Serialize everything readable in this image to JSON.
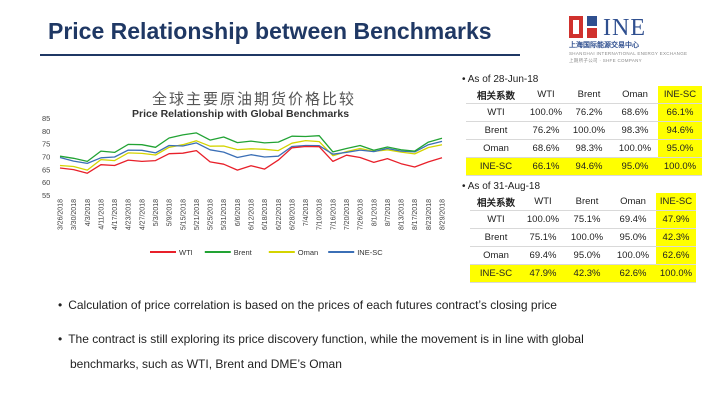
{
  "slide": {
    "title": "Price Relationship between Benchmarks"
  },
  "logo": {
    "word": "INE",
    "cn": "上海国际能源交易中心",
    "en_line1": "SHANGHAI INTERNATIONAL ENERGY EXCHANGE",
    "en_line2": "上期所子公司 · SHFE COMPANY"
  },
  "colors": {
    "wti": "#e8202a",
    "brent": "#22a334",
    "oman": "#d4d400",
    "ine": "#3b6fb6",
    "highlight": "#ffff00"
  },
  "chart_data": {
    "type": "line",
    "title_cn": "全球主要原油期货价格比较",
    "title": "Price Relationship with Global Benchmarks",
    "xlabel": "",
    "ylabel": "",
    "ylim": [
      55,
      85
    ],
    "yticks": [
      55,
      60,
      65,
      70,
      75,
      80,
      85
    ],
    "x": [
      "3/26/2018",
      "3/30/2018",
      "4/3/2018",
      "4/11/2018",
      "4/17/2018",
      "4/23/2018",
      "4/27/2018",
      "5/3/2018",
      "5/9/2018",
      "5/15/2018",
      "5/21/2018",
      "5/25/2018",
      "5/31/2018",
      "6/6/2018",
      "6/12/2018",
      "6/18/2018",
      "6/22/2018",
      "6/28/2018",
      "7/4/2018",
      "7/10/2018",
      "7/16/2018",
      "7/20/2018",
      "7/26/2018",
      "8/1/2018",
      "8/7/2018",
      "8/13/2018",
      "8/17/2018",
      "8/23/2018",
      "8/29/2018"
    ],
    "series": [
      {
        "name": "WTI",
        "values": [
          65.5,
          64.9,
          63.5,
          66.8,
          66.5,
          68.6,
          68.1,
          68.4,
          71.1,
          71.3,
          72.3,
          67.9,
          67.0,
          64.7,
          66.4,
          65.1,
          68.6,
          73.4,
          73.9,
          73.8,
          68.1,
          70.5,
          69.6,
          67.7,
          69.2,
          67.2,
          65.9,
          67.9,
          69.5
        ]
      },
      {
        "name": "Brent",
        "values": [
          70.1,
          69.3,
          68.1,
          72.1,
          71.6,
          74.7,
          74.6,
          73.6,
          77.2,
          78.4,
          79.2,
          76.4,
          77.6,
          75.4,
          76.0,
          75.3,
          75.6,
          77.9,
          77.8,
          78.1,
          71.8,
          73.1,
          74.3,
          72.4,
          73.7,
          72.6,
          72.1,
          75.6,
          77.1
        ]
      },
      {
        "name": "Oman",
        "values": [
          66.5,
          66.1,
          64.7,
          68.8,
          68.4,
          71.4,
          71.2,
          70.6,
          73.6,
          74.6,
          76.1,
          74.0,
          74.1,
          72.7,
          73.0,
          72.8,
          72.3,
          75.2,
          76.2,
          75.8,
          70.3,
          71.9,
          73.1,
          72.0,
          72.6,
          71.7,
          71.0,
          73.5,
          74.6
        ]
      },
      {
        "name": "INE-SC",
        "values": [
          69.6,
          68.2,
          67.3,
          69.5,
          69.8,
          72.5,
          72.4,
          71.4,
          74.3,
          74.1,
          75.3,
          72.6,
          71.7,
          69.6,
          70.7,
          69.8,
          70.1,
          73.9,
          74.3,
          74.2,
          70.9,
          71.6,
          72.5,
          71.9,
          73.1,
          72.1,
          71.8,
          74.6,
          75.9
        ]
      }
    ]
  },
  "table1": {
    "bullet": "As of 28-Jun-18",
    "corner": "相关系数",
    "headers": [
      "WTI",
      "Brent",
      "Oman",
      "INE-SC"
    ],
    "rows": [
      {
        "label": "WTI",
        "cells": [
          "100.0%",
          "76.2%",
          "68.6%",
          "66.1%"
        ]
      },
      {
        "label": "Brent",
        "cells": [
          "76.2%",
          "100.0%",
          "98.3%",
          "94.6%"
        ]
      },
      {
        "label": "Oman",
        "cells": [
          "68.6%",
          "98.3%",
          "100.0%",
          "95.0%"
        ]
      },
      {
        "label": "INE-SC",
        "cells": [
          "66.1%",
          "94.6%",
          "95.0%",
          "100.0%"
        ]
      }
    ]
  },
  "table2": {
    "bullet": "As of 31-Aug-18",
    "corner": "相关系数",
    "headers": [
      "WTI",
      "Brent",
      "Oman",
      "INE-SC"
    ],
    "rows": [
      {
        "label": "WTI",
        "cells": [
          "100.0%",
          "75.1%",
          "69.4%",
          "47.9%"
        ]
      },
      {
        "label": "Brent",
        "cells": [
          "75.1%",
          "100.0%",
          "95.0%",
          "42.3%"
        ]
      },
      {
        "label": "Oman",
        "cells": [
          "69.4%",
          "95.0%",
          "100.0%",
          "62.6%"
        ]
      },
      {
        "label": "INE-SC",
        "cells": [
          "47.9%",
          "42.3%",
          "62.6%",
          "100.0%"
        ]
      }
    ]
  },
  "notes": {
    "note1": "Calculation of price correlation is based on the prices of each futures contract’s closing price",
    "note2_line1": "The contract is still exploring its price discovery function, while the movement is in line with global",
    "note2_line2": "benchmarks, such as WTI, Brent and DME’s Oman"
  }
}
